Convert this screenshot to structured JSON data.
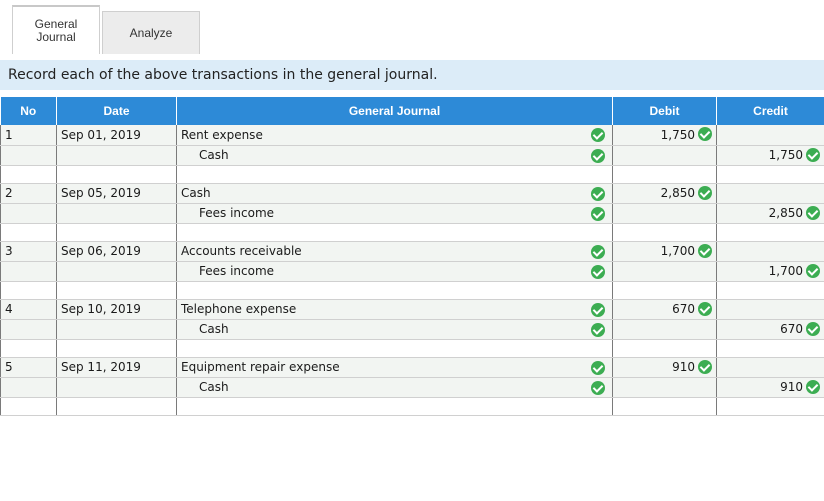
{
  "tabs": [
    {
      "label_line1": "General",
      "label_line2": "Journal",
      "active": true
    },
    {
      "label": "Analyze",
      "active": false
    }
  ],
  "instruction": "Record each of the above transactions in the general journal.",
  "columns": {
    "no": "No",
    "date": "Date",
    "journal": "General Journal",
    "debit": "Debit",
    "credit": "Credit"
  },
  "colors": {
    "header_bg": "#2d8ad7",
    "instruction_bg": "#dcecf8",
    "check_green": "#3cad52",
    "row_bg": "#f2f5f2"
  },
  "entries": [
    {
      "no": "1",
      "date": "Sep 01, 2019",
      "debit_account": "Rent expense",
      "debit": "1,750",
      "credit_account": "Cash",
      "credit": "1,750"
    },
    {
      "no": "2",
      "date": "Sep 05, 2019",
      "debit_account": "Cash",
      "debit": "2,850",
      "credit_account": "Fees income",
      "credit": "2,850"
    },
    {
      "no": "3",
      "date": "Sep 06, 2019",
      "debit_account": "Accounts receivable",
      "debit": "1,700",
      "credit_account": "Fees income",
      "credit": "1,700"
    },
    {
      "no": "4",
      "date": "Sep 10, 2019",
      "debit_account": "Telephone expense",
      "debit": "670",
      "credit_account": "Cash",
      "credit": "670"
    },
    {
      "no": "5",
      "date": "Sep 11, 2019",
      "debit_account": "Equipment repair expense",
      "debit": "910",
      "credit_account": "Cash",
      "credit": "910"
    }
  ],
  "icons": {
    "correct": "check-circle-icon"
  }
}
